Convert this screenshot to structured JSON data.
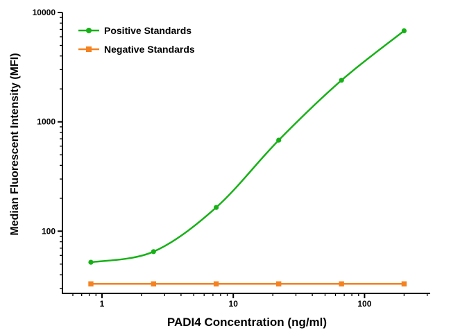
{
  "chart_data": {
    "type": "line",
    "title": "",
    "xlabel": "PADI4 Concentration (ng/ml)",
    "ylabel": "Median Fluorescent Intensity (MFI)",
    "x_scale": "log",
    "y_scale": "log",
    "x_range": [
      0.5,
      316
    ],
    "y_range": [
      27,
      10000
    ],
    "x_major_ticks": [
      1,
      10,
      100
    ],
    "y_major_ticks": [
      100,
      1000,
      10000
    ],
    "grid": false,
    "legend_position": "top-left-inside",
    "axis_color": "#000000",
    "series": [
      {
        "name": "Positive Standards",
        "color": "#17b117",
        "marker": "circle",
        "x": [
          0.823,
          2.47,
          7.41,
          22.2,
          66.7,
          200
        ],
        "y": [
          52,
          65,
          165,
          680,
          2400,
          6800
        ]
      },
      {
        "name": "Negative Standards",
        "color": "#f58220",
        "marker": "square",
        "x": [
          0.823,
          2.47,
          7.41,
          22.2,
          66.7,
          200
        ],
        "y": [
          33,
          33,
          33,
          33,
          33,
          33
        ]
      }
    ]
  }
}
